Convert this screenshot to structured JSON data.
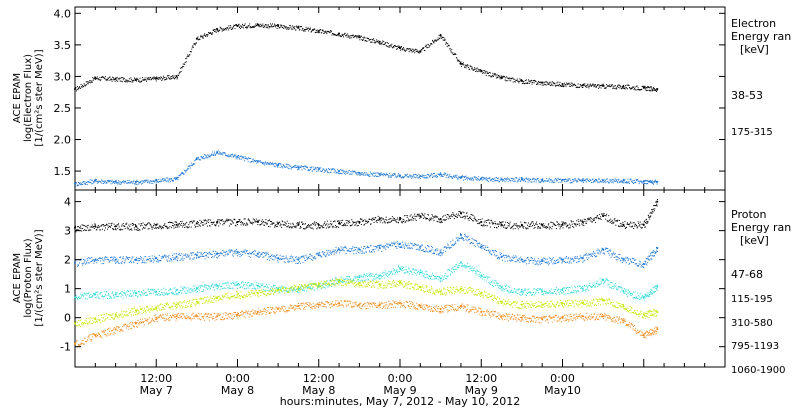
{
  "figure": {
    "xlabel": "hours:minutes, May  7, 2012 - May 10, 2012",
    "x_ticks": [
      {
        "time": "12:00",
        "date": "May 7"
      },
      {
        "time": "0:00",
        "date": "May 8"
      },
      {
        "time": "12:00",
        "date": "May 8"
      },
      {
        "time": "0:00",
        "date": "May 9"
      },
      {
        "time": "12:00",
        "date": "May 9"
      },
      {
        "time": "0:00",
        "date": "May10"
      }
    ]
  },
  "chart_data": [
    {
      "type": "scatter",
      "instrument": "ACE EPAM",
      "ylabel_line1": "ACE EPAM",
      "ylabel_line2": "log(Electron Flux)",
      "ylabel_line3": "[1/(cm²s ster MeV)]",
      "ylim": [
        1.2,
        4.1
      ],
      "yticks": [
        "1.5",
        "2.0",
        "2.5",
        "3.0",
        "3.5",
        "4.0"
      ],
      "ytick_values": [
        1.5,
        2.0,
        2.5,
        3.0,
        3.5,
        4.0
      ],
      "legend_title": [
        "Electron",
        "Energy ran",
        "[keV]"
      ],
      "series": [
        {
          "name": "38-53",
          "color": "#000000",
          "x_hours": [
            0,
            3,
            6,
            9,
            12,
            15,
            18,
            21,
            24,
            27,
            30,
            33,
            36,
            39,
            42,
            45,
            48,
            51,
            54,
            57,
            60,
            63,
            66,
            69,
            72,
            75,
            78,
            81,
            84,
            86
          ],
          "values": [
            2.8,
            2.98,
            2.96,
            2.95,
            2.97,
            3.0,
            3.6,
            3.75,
            3.8,
            3.82,
            3.8,
            3.77,
            3.72,
            3.68,
            3.62,
            3.55,
            3.45,
            3.4,
            3.65,
            3.2,
            3.08,
            2.98,
            2.93,
            2.9,
            2.88,
            2.86,
            2.85,
            2.84,
            2.82,
            2.8
          ]
        },
        {
          "name": "175-315",
          "color": "#1e78d2",
          "x_hours": [
            0,
            3,
            6,
            9,
            12,
            15,
            18,
            21,
            24,
            27,
            30,
            33,
            36,
            39,
            42,
            45,
            48,
            51,
            54,
            57,
            60,
            63,
            66,
            69,
            72,
            75,
            78,
            81,
            84,
            86
          ],
          "values": [
            1.3,
            1.35,
            1.33,
            1.33,
            1.35,
            1.38,
            1.7,
            1.8,
            1.73,
            1.65,
            1.6,
            1.56,
            1.53,
            1.5,
            1.47,
            1.45,
            1.43,
            1.42,
            1.45,
            1.4,
            1.38,
            1.37,
            1.37,
            1.36,
            1.36,
            1.35,
            1.35,
            1.35,
            1.34,
            1.33
          ]
        }
      ]
    },
    {
      "type": "scatter",
      "instrument": "ACE EPAM",
      "ylabel_line1": "ACE EPAM",
      "ylabel_line2": "log(Proton Flux)",
      "ylabel_line3": "[1/(cm²s ster MeV)]",
      "ylim": [
        -1.7,
        4.4
      ],
      "yticks": [
        "-1",
        "0",
        "1",
        "2",
        "3",
        "4"
      ],
      "ytick_values": [
        -1,
        0,
        1,
        2,
        3,
        4
      ],
      "legend_title": [
        "Proton",
        "Energy ran",
        "[keV]"
      ],
      "series": [
        {
          "name": "47-68",
          "color": "#000000",
          "x_hours": [
            0,
            3,
            6,
            9,
            12,
            15,
            18,
            21,
            24,
            27,
            30,
            33,
            36,
            39,
            42,
            45,
            48,
            51,
            54,
            57,
            60,
            63,
            66,
            69,
            72,
            75,
            78,
            81,
            84,
            86
          ],
          "values": [
            3.1,
            3.15,
            3.15,
            3.15,
            3.2,
            3.2,
            3.25,
            3.3,
            3.3,
            3.3,
            3.25,
            3.2,
            3.2,
            3.25,
            3.3,
            3.4,
            3.4,
            3.5,
            3.4,
            3.6,
            3.3,
            3.2,
            3.2,
            3.2,
            3.2,
            3.3,
            3.5,
            3.2,
            3.2,
            4.0
          ]
        },
        {
          "name": "115-195",
          "color": "#1e78d2",
          "x_hours": [
            0,
            3,
            6,
            9,
            12,
            15,
            18,
            21,
            24,
            27,
            30,
            33,
            36,
            39,
            42,
            45,
            48,
            51,
            54,
            57,
            60,
            63,
            66,
            69,
            72,
            75,
            78,
            81,
            84,
            86
          ],
          "values": [
            1.9,
            2.0,
            2.0,
            2.0,
            2.05,
            2.1,
            2.15,
            2.2,
            2.25,
            2.2,
            2.05,
            2.0,
            2.15,
            2.35,
            2.35,
            2.4,
            2.55,
            2.45,
            2.25,
            2.85,
            2.45,
            2.1,
            2.0,
            1.95,
            2.0,
            2.05,
            2.35,
            2.0,
            1.85,
            2.4
          ]
        },
        {
          "name": "310-580",
          "color": "#30d8d8",
          "x_hours": [
            0,
            3,
            6,
            9,
            12,
            15,
            18,
            21,
            24,
            27,
            30,
            33,
            36,
            39,
            42,
            45,
            48,
            51,
            54,
            57,
            60,
            63,
            66,
            69,
            72,
            75,
            78,
            81,
            84,
            86
          ],
          "values": [
            0.7,
            0.8,
            0.8,
            0.85,
            0.9,
            0.95,
            1.0,
            1.1,
            1.15,
            1.1,
            1.0,
            1.0,
            1.1,
            1.3,
            1.4,
            1.45,
            1.7,
            1.55,
            1.35,
            1.9,
            1.45,
            1.05,
            0.9,
            0.9,
            0.95,
            1.0,
            1.3,
            0.9,
            0.7,
            1.1
          ]
        },
        {
          "name": "795-1193",
          "color": "#c8e600",
          "x_hours": [
            0,
            3,
            6,
            9,
            12,
            15,
            18,
            21,
            24,
            27,
            30,
            33,
            36,
            39,
            42,
            45,
            48,
            51,
            54,
            57,
            60,
            63,
            66,
            69,
            72,
            75,
            78,
            81,
            84,
            86
          ],
          "values": [
            -0.2,
            -0.05,
            0.1,
            0.25,
            0.35,
            0.45,
            0.55,
            0.7,
            0.8,
            0.85,
            0.95,
            1.05,
            1.15,
            1.25,
            1.2,
            1.15,
            1.2,
            1.05,
            0.9,
            1.0,
            0.85,
            0.55,
            0.45,
            0.45,
            0.5,
            0.5,
            0.6,
            0.4,
            0.1,
            0.2
          ]
        },
        {
          "name": "1060-1900",
          "color": "#f08c1e",
          "x_hours": [
            0,
            3,
            6,
            9,
            12,
            15,
            18,
            21,
            24,
            27,
            30,
            33,
            36,
            39,
            42,
            45,
            48,
            51,
            54,
            57,
            60,
            63,
            66,
            69,
            72,
            75,
            78,
            81,
            84,
            86
          ],
          "values": [
            -0.9,
            -0.6,
            -0.4,
            -0.2,
            0.0,
            0.05,
            0.05,
            0.05,
            0.1,
            0.2,
            0.3,
            0.4,
            0.45,
            0.5,
            0.45,
            0.45,
            0.5,
            0.4,
            0.3,
            0.4,
            0.2,
            0.05,
            0.0,
            -0.05,
            0.0,
            0.05,
            0.05,
            -0.1,
            -0.6,
            -0.4
          ]
        }
      ]
    }
  ]
}
